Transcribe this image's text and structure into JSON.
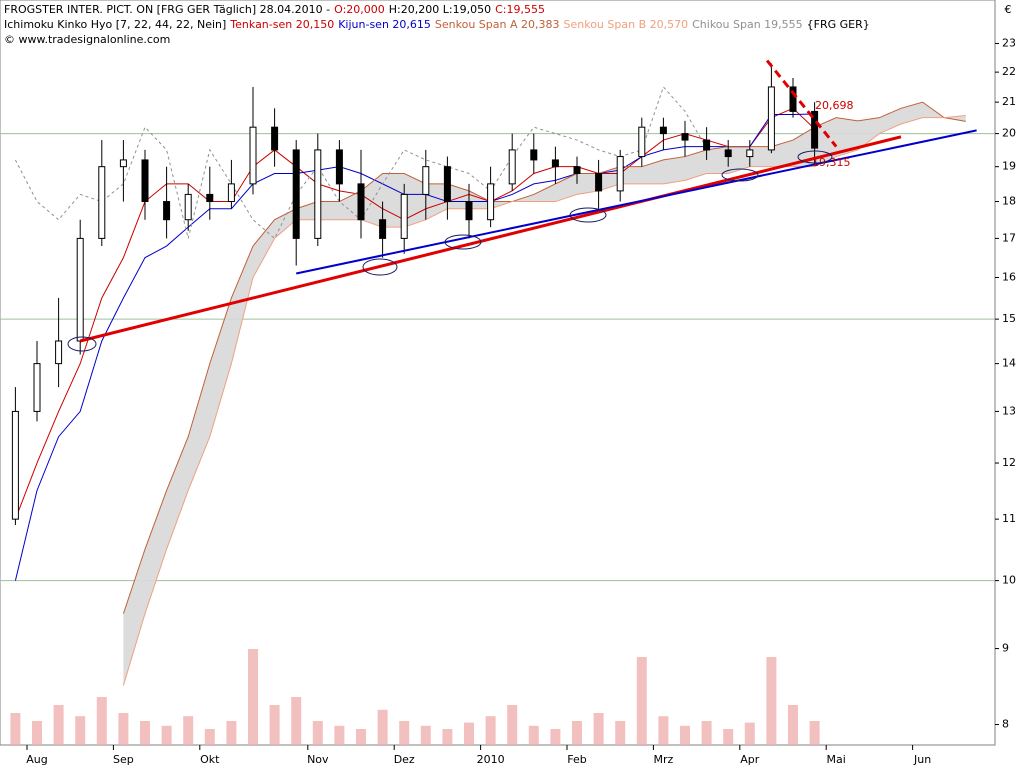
{
  "chart_data": {
    "type": "candlestick",
    "header": {
      "title": "FROGSTER INTER. PICT. ON [FRG GER  Täglich] 28.04.2010 -",
      "quote": [
        {
          "text": "O:20,000",
          "color": "#cc0000"
        },
        {
          "text": "H:20,200 L:19,050",
          "color": "#000000"
        },
        {
          "text": "C:19,555",
          "color": "#cc0000"
        }
      ],
      "indicator": "Ichimoku Kinko Hyo [7, 22, 44, 22, Nein]",
      "suffix": "{FRG GER}",
      "copyright": "© www.tradesignalonline.com"
    },
    "currency": "€",
    "categories": [
      null,
      "Aug",
      null,
      null,
      null,
      "Sep",
      null,
      null,
      null,
      "Okt",
      null,
      null,
      null,
      null,
      "Nov",
      null,
      null,
      null,
      "Dez",
      null,
      null,
      null,
      "2010",
      null,
      null,
      null,
      "Feb",
      null,
      null,
      null,
      "Mrz",
      null,
      null,
      null,
      "Apr",
      null,
      null,
      null,
      "Mai",
      null,
      null,
      null,
      "Jun",
      null,
      null
    ],
    "candles": [
      [
        11,
        13.5,
        10.9,
        13
      ],
      [
        13,
        14.5,
        12.8,
        14
      ],
      [
        14,
        15.5,
        13.5,
        14.5
      ],
      [
        14.5,
        17.5,
        14.2,
        17
      ],
      [
        17,
        19.8,
        16.8,
        19
      ],
      [
        19,
        19.8,
        18,
        19.2
      ],
      [
        19.2,
        19.5,
        17.5,
        18
      ],
      [
        18,
        19,
        17,
        17.5
      ],
      [
        17.5,
        18.5,
        17.2,
        18.2
      ],
      [
        18.2,
        19,
        17.5,
        18
      ],
      [
        18,
        19.2,
        17.8,
        18.5
      ],
      [
        18.5,
        21.5,
        18.2,
        20.2
      ],
      [
        20.2,
        20.8,
        19,
        19.5
      ],
      [
        19.5,
        19.8,
        16.3,
        17
      ],
      [
        17,
        20,
        16.8,
        19.5
      ],
      [
        19.5,
        19.8,
        18,
        18.5
      ],
      [
        18.5,
        19.5,
        17,
        17.5
      ],
      [
        17.5,
        18,
        16.5,
        17
      ],
      [
        17,
        18.5,
        16.6,
        18.2
      ],
      [
        18.2,
        19.5,
        17.5,
        19
      ],
      [
        19,
        19.3,
        17.5,
        18
      ],
      [
        18,
        18.5,
        17,
        17.5
      ],
      [
        17.5,
        19,
        17.3,
        18.5
      ],
      [
        18.5,
        20,
        18.3,
        19.5
      ],
      [
        19.5,
        20,
        18.8,
        19.2
      ],
      [
        19.2,
        19.6,
        18.5,
        19
      ],
      [
        19,
        19.3,
        18.5,
        18.8
      ],
      [
        18.8,
        19.2,
        17.8,
        18.3
      ],
      [
        18.3,
        19.5,
        18,
        19.3
      ],
      [
        19.3,
        20.5,
        19,
        20.2
      ],
      [
        20.2,
        20.5,
        19.5,
        20
      ],
      [
        20,
        20.4,
        19.3,
        19.8
      ],
      [
        19.8,
        20.2,
        19.2,
        19.5
      ],
      [
        19.5,
        19.8,
        19,
        19.3
      ],
      [
        19.3,
        19.8,
        19,
        19.5
      ],
      [
        19.5,
        22.3,
        19.4,
        21.5
      ],
      [
        21.5,
        21.8,
        20.5,
        20.7
      ],
      [
        20.7,
        21,
        19.05,
        19.555
      ]
    ],
    "series": [
      {
        "name": "Tenkan-sen 20,150",
        "color": "#cc0000",
        "values": [
          11,
          12,
          13,
          14,
          15.5,
          16.5,
          18,
          18.5,
          18.5,
          18,
          18,
          19,
          19.5,
          19,
          18.5,
          18.3,
          18.2,
          17.8,
          17.5,
          17.8,
          18,
          18.2,
          18,
          18.3,
          18.8,
          19,
          19,
          18.8,
          18.8,
          19.3,
          19.8,
          20,
          19.8,
          19.6,
          19.6,
          20.5,
          20.8,
          20.15,
          null,
          null,
          null,
          null,
          null,
          null,
          null
        ]
      },
      {
        "name": "Kijun-sen 20,615",
        "color": "#0000cc",
        "values": [
          10,
          11.5,
          12.5,
          13,
          14.5,
          15.5,
          16.5,
          16.8,
          17.3,
          17.8,
          17.8,
          18.5,
          18.8,
          18.8,
          18.9,
          19,
          18.8,
          18.5,
          18.2,
          18.2,
          18,
          18,
          18,
          18.2,
          18.5,
          18.6,
          18.8,
          18.8,
          18.9,
          19.3,
          19.5,
          19.6,
          19.6,
          19.6,
          19.6,
          20.6,
          20.6,
          20.615,
          null,
          null,
          null,
          null,
          null,
          null,
          null
        ]
      },
      {
        "name": "Senkou Span A 20,383",
        "color": "#c0603a",
        "values": [
          null,
          null,
          null,
          null,
          null,
          9.5,
          10.5,
          11.5,
          12.5,
          14,
          15.5,
          16.8,
          17.5,
          17.8,
          18,
          18,
          18.3,
          18.8,
          18.8,
          18.5,
          18.5,
          18.3,
          18,
          18,
          18.2,
          18.5,
          18.8,
          18.8,
          19,
          19,
          19.2,
          19.3,
          19.5,
          19.6,
          19.6,
          19.6,
          19.8,
          20.2,
          20.5,
          20.4,
          20.5,
          20.8,
          21,
          20.5,
          20.383
        ]
      },
      {
        "name": "Senkou Span B 20,570",
        "color": "#f0a080",
        "values": [
          null,
          null,
          null,
          null,
          null,
          8.5,
          9.5,
          10.5,
          11.5,
          12.5,
          14,
          16,
          17,
          17.5,
          17.5,
          17.5,
          17.5,
          17.3,
          17.3,
          17.5,
          17.8,
          17.8,
          17.8,
          18,
          18,
          18,
          18.2,
          18.3,
          18.5,
          18.5,
          18.5,
          18.6,
          18.8,
          18.8,
          19,
          19,
          19,
          19,
          19.3,
          19.5,
          20,
          20.3,
          20.5,
          20.5,
          20.57
        ]
      },
      {
        "name": "Chikou Span 19,555",
        "color": "#909090",
        "dashed": true,
        "values": [
          19.2,
          18,
          17.5,
          18.2,
          18,
          18.5,
          20.2,
          19.5,
          17,
          19.5,
          18.5,
          17.5,
          17,
          18.2,
          19,
          18,
          17.5,
          18.5,
          19.5,
          19.2,
          19,
          18.8,
          18.3,
          19.3,
          20.2,
          20,
          19.8,
          19.5,
          19.3,
          19.5,
          21.5,
          20.7,
          19.555,
          null,
          null,
          null,
          null,
          null,
          null,
          null,
          null,
          null,
          null,
          null,
          null
        ]
      }
    ],
    "volume": {
      "color": "#f0b0b0",
      "values": [
        20,
        15,
        25,
        18,
        30,
        20,
        15,
        12,
        18,
        10,
        15,
        60,
        25,
        30,
        15,
        12,
        10,
        22,
        15,
        12,
        10,
        14,
        18,
        25,
        12,
        10,
        15,
        20,
        15,
        55,
        18,
        12,
        15,
        10,
        14,
        55,
        25,
        15,
        null,
        null,
        null,
        null,
        null,
        null,
        null
      ],
      "ylim": [
        0,
        100
      ]
    },
    "trendlines": [
      {
        "color": "#e00000",
        "width": 3,
        "x": [
          3,
          41
        ],
        "values": [
          14.5,
          19.9
        ]
      },
      {
        "color": "#0000cc",
        "width": 2,
        "x": [
          13,
          44.5
        ],
        "values": [
          16.1,
          20.1
        ]
      },
      {
        "color": "#e00000",
        "width": 3,
        "dashed": true,
        "x": [
          34.8,
          38
        ],
        "values": [
          22.4,
          19.6
        ]
      }
    ],
    "annotations": [
      {
        "text": "20,698",
        "color": "#cc0000"
      },
      {
        "text": "19,315",
        "color": "#cc0000"
      }
    ],
    "log_scale": true,
    "ylim": [
      7.75,
      24.3
    ],
    "yticks": [
      8,
      9,
      10,
      11,
      12,
      13,
      14,
      15,
      16,
      17,
      18,
      19,
      20,
      21,
      22,
      23
    ],
    "gridlines": [
      10,
      15,
      20
    ]
  }
}
